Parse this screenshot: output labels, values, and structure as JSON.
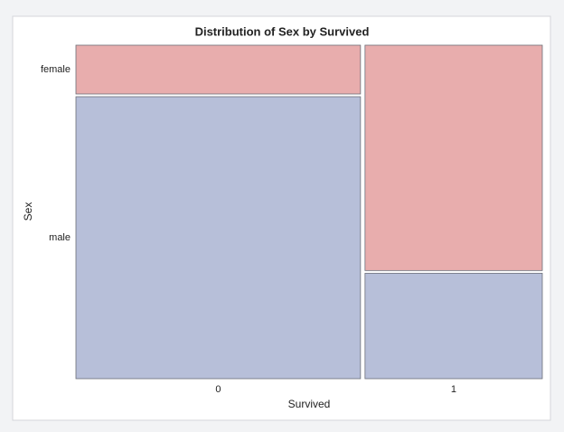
{
  "chart_data": {
    "type": "mosaic",
    "title": "Distribution of Sex by Survived",
    "x_label": "Survived",
    "y_label": "Sex",
    "categories": [
      "0",
      "1"
    ],
    "series": [
      {
        "name": "female",
        "color": "#e8adad",
        "values": [
          81,
          233
        ]
      },
      {
        "name": "male",
        "color": "#b7bfd9",
        "values": [
          468,
          109
        ]
      }
    ]
  }
}
